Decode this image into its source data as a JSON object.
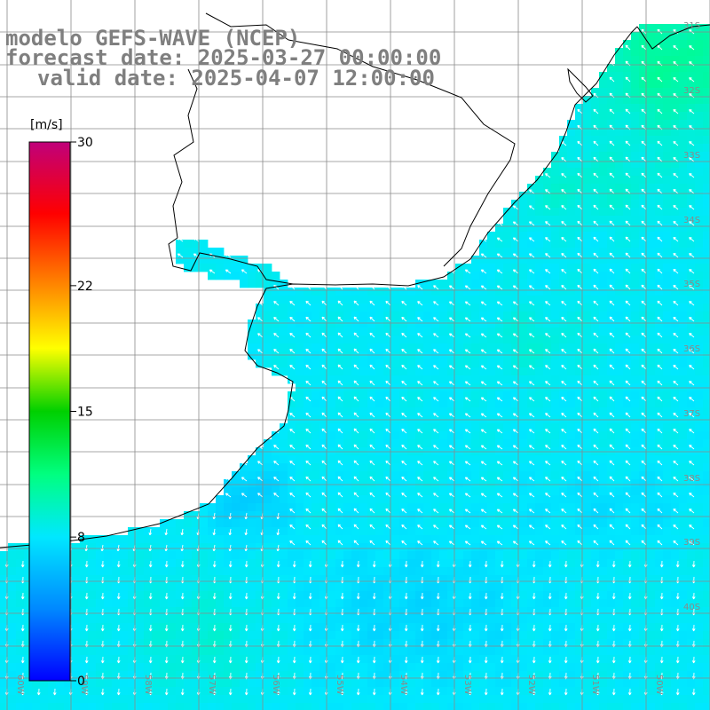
{
  "title": {
    "model": "modelo GEFS-WAVE (NCEP)",
    "forecast": "forecast date: 2025-03-27 00:00:00",
    "valid": "valid date: 2025-04-07 12:00:00"
  },
  "colorbar": {
    "unit": "[m/s]",
    "ticks": [
      "30",
      "22",
      "15",
      "8",
      "0"
    ],
    "tick_values": [
      30,
      22,
      15,
      8,
      0
    ],
    "range": [
      0,
      30
    ],
    "colors": [
      "#0000ff",
      "#0088ff",
      "#00e8ff",
      "#00ff80",
      "#00d000",
      "#ffff00",
      "#ff8800",
      "#ff0000",
      "#c0007a"
    ]
  },
  "grid_labels": {
    "lat": [
      "31S",
      "32S",
      "33S",
      "34S",
      "35S",
      "36S",
      "37S",
      "38S",
      "39S",
      "40S"
    ],
    "lon": [
      "60W",
      "59W",
      "58W",
      "57W",
      "56W",
      "55W",
      "54W",
      "53W",
      "52W",
      "51W",
      "50W"
    ]
  },
  "colors": {
    "land": "#ffffff",
    "coast": "#000000",
    "grid": "#8a8a8a",
    "arrow": "#ffffff",
    "title": "#7f7f7f"
  }
}
